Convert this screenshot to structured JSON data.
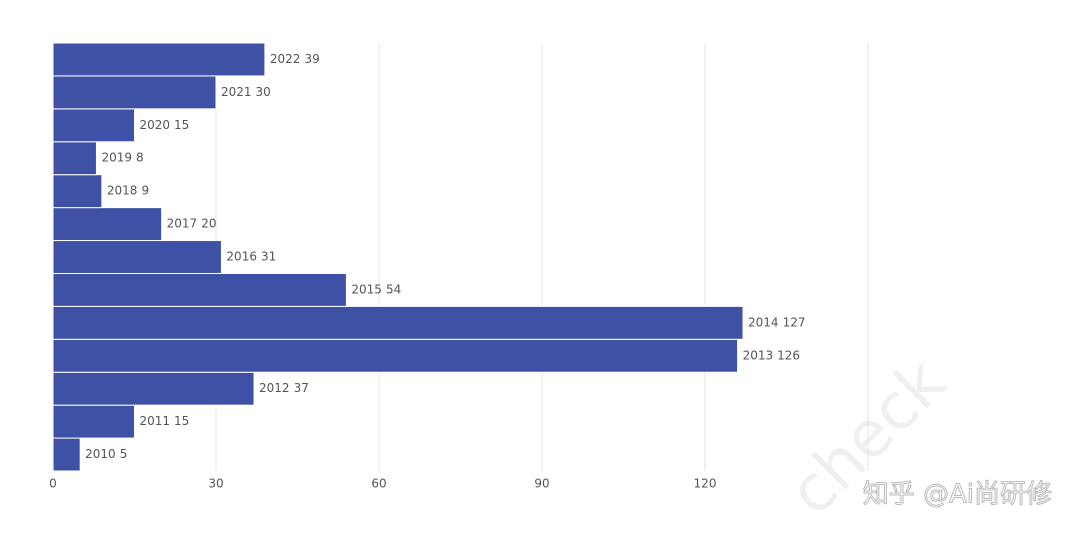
{
  "chart_data": {
    "type": "bar",
    "orientation": "horizontal",
    "categories": [
      "2010",
      "2011",
      "2012",
      "2013",
      "2014",
      "2015",
      "2016",
      "2017",
      "2018",
      "2019",
      "2020",
      "2021",
      "2022"
    ],
    "values": [
      5,
      15,
      37,
      126,
      127,
      54,
      31,
      20,
      9,
      8,
      15,
      30,
      39
    ],
    "color": "#3f51a5",
    "xlim": [
      0,
      150
    ],
    "xticks": [
      0,
      30,
      60,
      90,
      120
    ],
    "grid": true
  },
  "watermark": "知乎 @Ai尚研修",
  "background_watermark": "check"
}
